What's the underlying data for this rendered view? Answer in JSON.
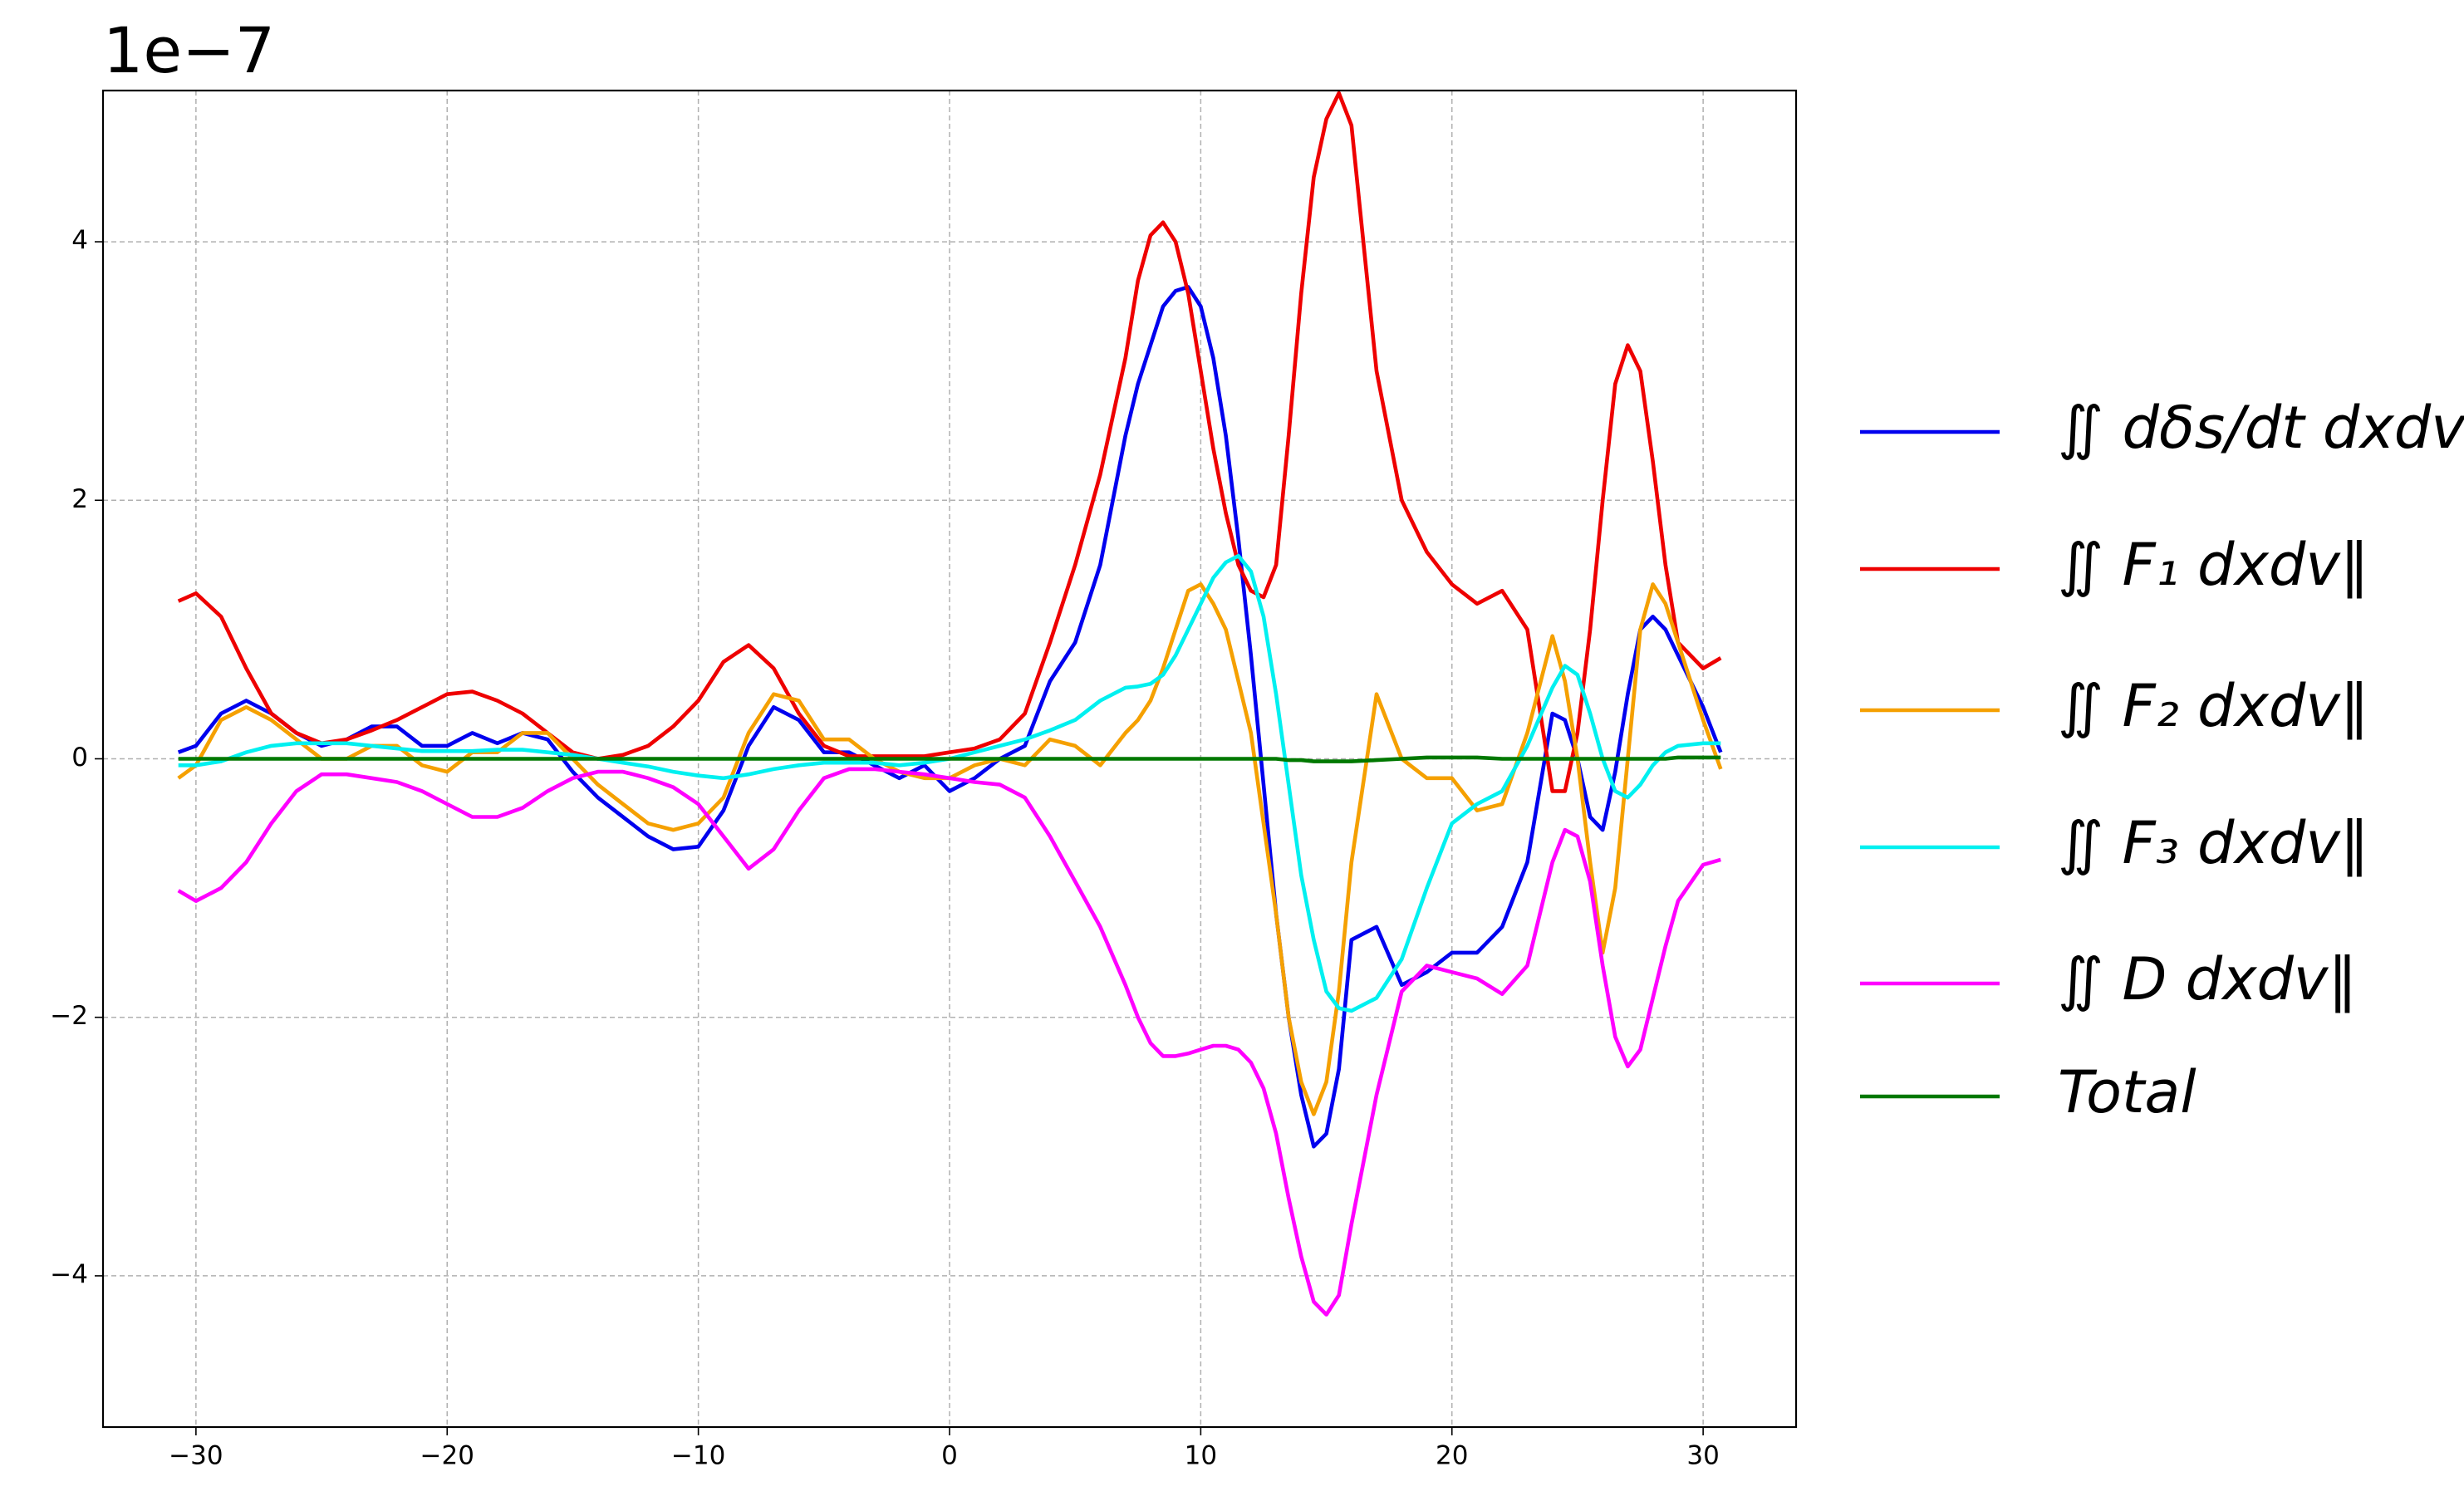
{
  "chart_data": {
    "type": "line",
    "offset_text": "1e−7",
    "x": [
      -30.7,
      -30,
      -29,
      -28,
      -27,
      -26,
      -25,
      -24,
      -23,
      -22,
      -21,
      -20,
      -19,
      -18,
      -17,
      -16,
      -15,
      -14,
      -13,
      -12,
      -11,
      -10,
      -9,
      -8,
      -7,
      -6,
      -5,
      -4,
      -3,
      -2,
      -1,
      0,
      1,
      2,
      3,
      4,
      5,
      6,
      7,
      7.5,
      8,
      8.5,
      9,
      9.5,
      10,
      10.5,
      11,
      11.5,
      12,
      12.5,
      13,
      13.5,
      14,
      14.5,
      15,
      15.5,
      16,
      17,
      18,
      19,
      20,
      21,
      22,
      23,
      24,
      24.5,
      25,
      25.5,
      26,
      26.5,
      27,
      27.5,
      28,
      28.5,
      29,
      30,
      30.7
    ],
    "series": [
      {
        "name": "∬ dδs/dt dxdv‖",
        "color": "#0000ee",
        "values": [
          0.05,
          0.1,
          0.35,
          0.45,
          0.35,
          0.2,
          0.1,
          0.15,
          0.25,
          0.25,
          0.1,
          0.1,
          0.2,
          0.12,
          0.2,
          0.15,
          -0.1,
          -0.3,
          -0.45,
          -0.6,
          -0.7,
          -0.68,
          -0.4,
          0.1,
          0.4,
          0.3,
          0.05,
          0.05,
          -0.05,
          -0.15,
          -0.05,
          -0.25,
          -0.15,
          0.0,
          0.1,
          0.6,
          0.9,
          1.5,
          2.5,
          2.9,
          3.2,
          3.5,
          3.62,
          3.65,
          3.5,
          3.1,
          2.5,
          1.7,
          0.8,
          -0.2,
          -1.2,
          -2.0,
          -2.6,
          -3.0,
          -2.9,
          -2.4,
          -1.4,
          -1.3,
          -1.75,
          -1.65,
          -1.5,
          -1.5,
          -1.3,
          -0.8,
          0.35,
          0.3,
          0.0,
          -0.45,
          -0.55,
          -0.1,
          0.5,
          1.0,
          1.1,
          1.0,
          0.8,
          0.4,
          0.05
        ]
      },
      {
        "name": "∬ F₁ dxdv‖",
        "color": "#ee0000",
        "values": [
          1.22,
          1.28,
          1.1,
          0.7,
          0.35,
          0.2,
          0.12,
          0.15,
          0.22,
          0.3,
          0.4,
          0.5,
          0.52,
          0.45,
          0.35,
          0.2,
          0.05,
          0.0,
          0.03,
          0.1,
          0.25,
          0.45,
          0.75,
          0.88,
          0.7,
          0.35,
          0.1,
          0.02,
          0.02,
          0.02,
          0.02,
          0.05,
          0.08,
          0.15,
          0.35,
          0.9,
          1.5,
          2.2,
          3.1,
          3.7,
          4.05,
          4.15,
          4.0,
          3.6,
          3.0,
          2.4,
          1.9,
          1.5,
          1.3,
          1.25,
          1.5,
          2.5,
          3.6,
          4.5,
          4.95,
          5.15,
          4.9,
          3.0,
          2.0,
          1.6,
          1.35,
          1.2,
          1.3,
          1.0,
          -0.25,
          -0.25,
          0.2,
          1.0,
          2.0,
          2.9,
          3.2,
          3.0,
          2.3,
          1.5,
          0.9,
          0.7,
          0.78
        ]
      },
      {
        "name": "∬ F₂ dxdv‖",
        "color": "#f5a000",
        "values": [
          -0.15,
          -0.05,
          0.3,
          0.4,
          0.3,
          0.15,
          0.0,
          0.0,
          0.1,
          0.1,
          -0.05,
          -0.1,
          0.05,
          0.05,
          0.2,
          0.2,
          0.0,
          -0.2,
          -0.35,
          -0.5,
          -0.55,
          -0.5,
          -0.3,
          0.2,
          0.5,
          0.45,
          0.15,
          0.15,
          0.0,
          -0.1,
          -0.15,
          -0.15,
          -0.05,
          0.0,
          -0.05,
          0.15,
          0.1,
          -0.05,
          0.2,
          0.3,
          0.45,
          0.7,
          1.0,
          1.3,
          1.35,
          1.2,
          1.0,
          0.6,
          0.2,
          -0.5,
          -1.2,
          -2.0,
          -2.5,
          -2.75,
          -2.5,
          -1.8,
          -0.8,
          0.5,
          0.0,
          -0.15,
          -0.15,
          -0.4,
          -0.35,
          0.2,
          0.95,
          0.6,
          0.0,
          -0.8,
          -1.5,
          -1.0,
          0.0,
          1.0,
          1.35,
          1.2,
          0.9,
          0.3,
          -0.08
        ]
      },
      {
        "name": "∬ F₃ dxdv‖",
        "color": "#00f0f0",
        "values": [
          -0.05,
          -0.05,
          -0.02,
          0.05,
          0.1,
          0.12,
          0.12,
          0.12,
          0.1,
          0.08,
          0.06,
          0.06,
          0.06,
          0.07,
          0.07,
          0.05,
          0.03,
          0.0,
          -0.03,
          -0.06,
          -0.1,
          -0.13,
          -0.15,
          -0.12,
          -0.08,
          -0.05,
          -0.03,
          -0.03,
          -0.03,
          -0.05,
          -0.03,
          0.0,
          0.05,
          0.1,
          0.15,
          0.22,
          0.3,
          0.45,
          0.55,
          0.56,
          0.58,
          0.65,
          0.8,
          1.0,
          1.2,
          1.4,
          1.52,
          1.57,
          1.45,
          1.1,
          0.5,
          -0.2,
          -0.9,
          -1.4,
          -1.8,
          -1.93,
          -1.95,
          -1.85,
          -1.55,
          -1.0,
          -0.5,
          -0.35,
          -0.25,
          0.1,
          0.55,
          0.72,
          0.65,
          0.35,
          0.0,
          -0.25,
          -0.3,
          -0.2,
          -0.05,
          0.05,
          0.1,
          0.12,
          0.12
        ]
      },
      {
        "name": "∬ D dxdv‖",
        "color": "#ff00ff",
        "values": [
          -1.02,
          -1.1,
          -1.0,
          -0.8,
          -0.5,
          -0.25,
          -0.12,
          -0.12,
          -0.15,
          -0.18,
          -0.25,
          -0.35,
          -0.45,
          -0.45,
          -0.38,
          -0.25,
          -0.15,
          -0.1,
          -0.1,
          -0.15,
          -0.22,
          -0.35,
          -0.6,
          -0.85,
          -0.7,
          -0.4,
          -0.15,
          -0.08,
          -0.08,
          -0.1,
          -0.12,
          -0.15,
          -0.18,
          -0.2,
          -0.3,
          -0.6,
          -0.95,
          -1.3,
          -1.75,
          -2.0,
          -2.2,
          -2.3,
          -2.3,
          -2.28,
          -2.25,
          -2.22,
          -2.22,
          -2.25,
          -2.35,
          -2.55,
          -2.9,
          -3.4,
          -3.85,
          -4.2,
          -4.3,
          -4.15,
          -3.6,
          -2.6,
          -1.8,
          -1.6,
          -1.65,
          -1.7,
          -1.82,
          -1.6,
          -0.8,
          -0.55,
          -0.6,
          -0.95,
          -1.6,
          -2.15,
          -2.38,
          -2.25,
          -1.85,
          -1.45,
          -1.1,
          -0.82,
          -0.78
        ]
      },
      {
        "name": "Total",
        "color": "#007800",
        "values": [
          0,
          0,
          0,
          0,
          0,
          0,
          0,
          0,
          0,
          0,
          0,
          0,
          0,
          0,
          0,
          0,
          0,
          0,
          0,
          0,
          0,
          0,
          0,
          0,
          0,
          0,
          0,
          0,
          0,
          0,
          0,
          0,
          0,
          0,
          0,
          0,
          0,
          0,
          0,
          0,
          0,
          0,
          0,
          0,
          0,
          0,
          0,
          0,
          0,
          0,
          0,
          -0.01,
          -0.01,
          -0.02,
          -0.02,
          -0.02,
          -0.02,
          -0.01,
          0.0,
          0.01,
          0.01,
          0.01,
          0.0,
          0.0,
          0,
          0,
          0,
          0,
          0,
          0,
          0,
          0,
          0,
          0,
          0.01,
          0.01,
          0.01
        ]
      }
    ],
    "xlim": [
      -33.7,
      33.7
    ],
    "ylim": [
      -5.17,
      5.17
    ],
    "xticks": [
      {
        "value": -30,
        "label": "−30"
      },
      {
        "value": -20,
        "label": "−20"
      },
      {
        "value": -10,
        "label": "−10"
      },
      0,
      10,
      20,
      30
    ],
    "yticks": [
      {
        "value": -4,
        "label": "−4"
      },
      {
        "value": -2,
        "label": "−2"
      },
      0,
      2,
      4
    ],
    "grid": true,
    "legend": "right"
  }
}
